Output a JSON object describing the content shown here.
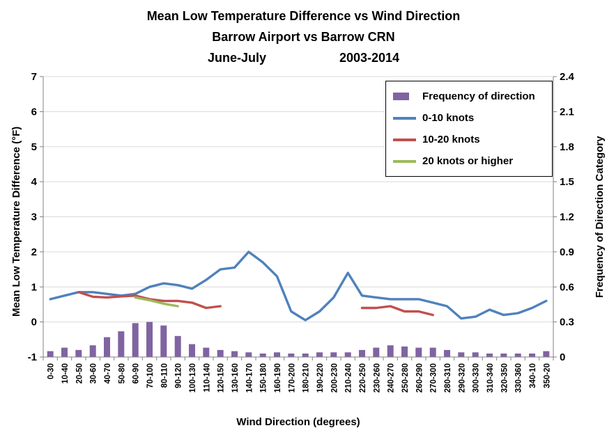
{
  "title": {
    "line1": "Mean Low Temperature Difference vs Wind Direction",
    "line2": "Barrow Airport vs Barrow CRN",
    "line3_left": "June-July",
    "line3_right": "2003-2014"
  },
  "axes": {
    "left_title": "Mean Low Temperature Difference (°F)",
    "right_title": "Frequency of Direction Category",
    "x_title": "Wind Direction (degrees)",
    "left_ticks": [
      "7",
      "6",
      "5",
      "4",
      "3",
      "2",
      "1",
      "0",
      "-1"
    ],
    "right_ticks": [
      "2.4",
      "2.1",
      "1.8",
      "1.5",
      "1.2",
      "0.9",
      "0.6",
      "0.3",
      "0"
    ]
  },
  "legend": {
    "items": [
      {
        "label": "Frequency of direction",
        "color": "#8064A2",
        "type": "bar"
      },
      {
        "label": "0-10 knots",
        "color": "#4F81BD",
        "type": "line"
      },
      {
        "label": "10-20 knots",
        "color": "#C0504D",
        "type": "line"
      },
      {
        "label": "20 knots or higher",
        "color": "#9BBB59",
        "type": "line"
      }
    ]
  },
  "colors": {
    "gridline": "#D9D9D9",
    "axis_line": "#808080",
    "bar": "#8064A2",
    "line_0_10": "#4F81BD",
    "line_10_20": "#C0504D",
    "line_20_plus": "#9BBB59"
  },
  "chart_data": {
    "type": "line+bar",
    "title": "Mean Low Temperature Difference vs Wind Direction — Barrow Airport vs Barrow CRN — June-July 2003-2014",
    "xlabel": "Wind Direction (degrees)",
    "left_axis": {
      "label": "Mean Low Temperature Difference (°F)",
      "min": -1,
      "max": 7,
      "step": 1
    },
    "right_axis": {
      "label": "Frequency of Direction Category",
      "min": 0,
      "max": 2.4,
      "step": 0.3
    },
    "grid": "horizontal-major",
    "legend_position": "top-right-inside",
    "categories": [
      "0-30",
      "10-40",
      "20-50",
      "30-60",
      "40-70",
      "50-80",
      "60-90",
      "70-100",
      "80-110",
      "90-120",
      "100-130",
      "110-140",
      "120-150",
      "130-160",
      "140-170",
      "150-180",
      "160-190",
      "170-200",
      "180-210",
      "190-220",
      "200-230",
      "210-240",
      "220-250",
      "230-260",
      "240-270",
      "250-280",
      "260-290",
      "270-300",
      "280-310",
      "290-320",
      "300-330",
      "310-340",
      "320-350",
      "330-360",
      "340-10",
      "350-20"
    ],
    "series": [
      {
        "name": "0-10 knots",
        "type": "line",
        "axis": "left",
        "color": "#4F81BD",
        "values": [
          0.65,
          0.75,
          0.85,
          0.85,
          0.8,
          0.75,
          0.8,
          1.0,
          1.1,
          1.05,
          0.95,
          1.2,
          1.5,
          1.55,
          2.0,
          1.7,
          1.3,
          0.3,
          0.05,
          0.3,
          0.7,
          1.4,
          0.75,
          0.7,
          0.65,
          0.65,
          0.65,
          0.55,
          0.45,
          0.1,
          0.15,
          0.35,
          0.2,
          0.25,
          0.4,
          0.6
        ]
      },
      {
        "name": "10-20 knots",
        "type": "line",
        "axis": "left",
        "color": "#C0504D",
        "values": [
          null,
          null,
          0.85,
          0.72,
          0.7,
          0.73,
          0.75,
          0.65,
          0.6,
          0.6,
          0.55,
          0.4,
          0.45,
          null,
          null,
          null,
          null,
          null,
          null,
          null,
          null,
          null,
          0.4,
          0.4,
          0.45,
          0.3,
          0.3,
          0.2,
          null,
          null,
          null,
          null,
          null,
          null,
          null,
          null
        ]
      },
      {
        "name": "20 knots or higher",
        "type": "line",
        "axis": "left",
        "color": "#9BBB59",
        "values": [
          null,
          null,
          null,
          null,
          null,
          null,
          0.7,
          0.62,
          0.52,
          0.45,
          null,
          null,
          null,
          null,
          null,
          null,
          null,
          null,
          null,
          null,
          null,
          null,
          null,
          null,
          null,
          null,
          null,
          null,
          null,
          null,
          null,
          null,
          null,
          null,
          null,
          null
        ]
      },
      {
        "name": "Frequency of direction",
        "type": "bar",
        "axis": "right",
        "color": "#8064A2",
        "values": [
          0.05,
          0.08,
          0.06,
          0.1,
          0.17,
          0.22,
          0.29,
          0.3,
          0.27,
          0.18,
          0.11,
          0.08,
          0.06,
          0.05,
          0.04,
          0.03,
          0.04,
          0.03,
          0.03,
          0.04,
          0.04,
          0.04,
          0.06,
          0.08,
          0.1,
          0.09,
          0.08,
          0.08,
          0.06,
          0.04,
          0.04,
          0.03,
          0.03,
          0.03,
          0.03,
          0.05
        ]
      }
    ]
  }
}
